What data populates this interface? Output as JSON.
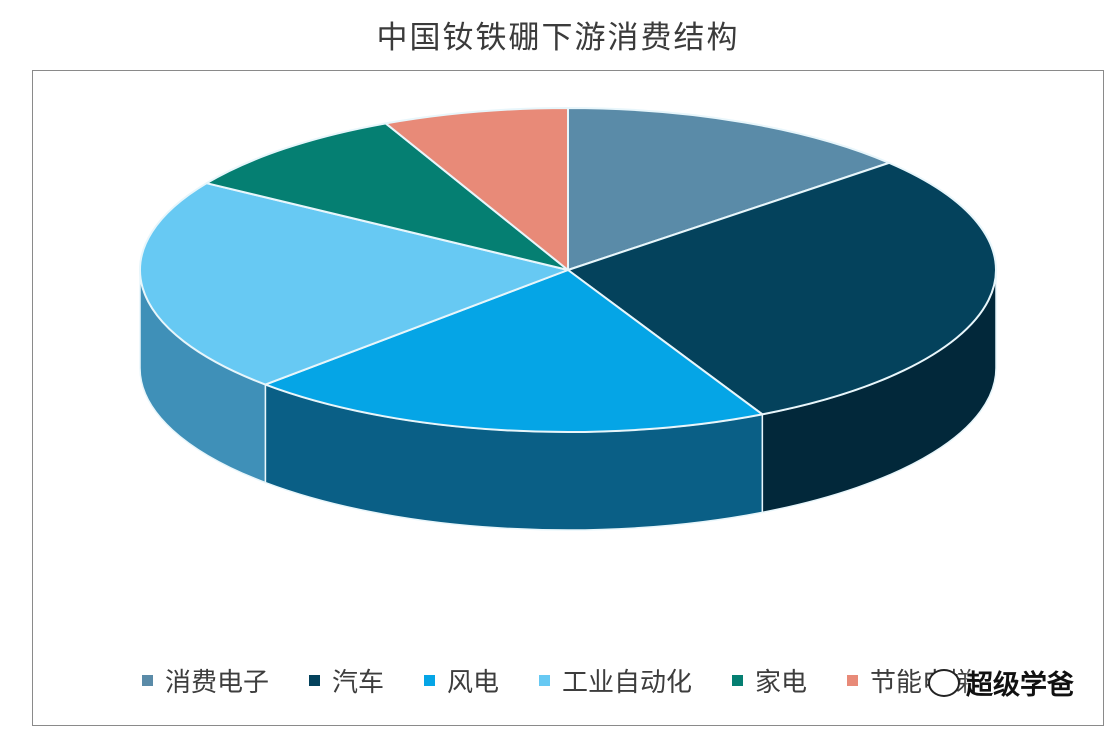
{
  "chart_data": {
    "type": "pie",
    "style": "3d",
    "title": "中国钕铁硼下游消费结构",
    "categories": [
      "消费电子",
      "汽车",
      "风电",
      "工业自动化",
      "家电",
      "节能电梯"
    ],
    "values": [
      13.5,
      29,
      20,
      21.5,
      9,
      7
    ],
    "unit": "%",
    "colors": [
      "#5a8ba8",
      "#04425c",
      "#05a5e6",
      "#67c9f3",
      "#057f72",
      "#e88a78"
    ],
    "side_colors": [
      "#3d6c86",
      "#02283a",
      "#0a5f86",
      "#3f90b8",
      "#03534a",
      "#b2685a"
    ],
    "legend": {
      "position": "bottom"
    }
  },
  "watermark": {
    "text": "超级学爸",
    "icon": "wechat-icon"
  }
}
